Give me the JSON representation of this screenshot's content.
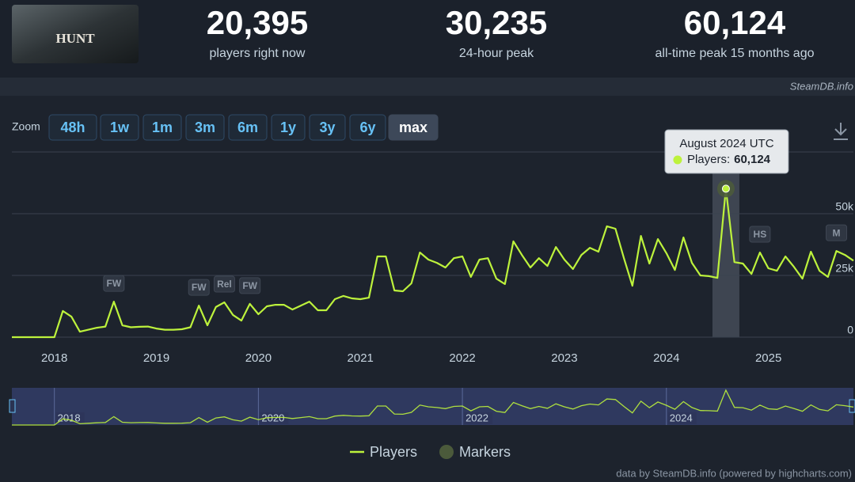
{
  "header": {
    "game_logo": "HUNT",
    "stats": [
      {
        "value": "20,395",
        "label": "players right now"
      },
      {
        "value": "30,235",
        "label": "24-hour peak"
      },
      {
        "value": "60,124",
        "label": "all-time peak 15 months ago"
      }
    ],
    "source": "SteamDB.info"
  },
  "zoom": {
    "label": "Zoom",
    "buttons": [
      "48h",
      "1w",
      "1m",
      "3m",
      "6m",
      "1y",
      "3y",
      "6y",
      "max"
    ]
  },
  "chart_data": {
    "type": "line",
    "x": [
      "2017-08",
      "2017-09",
      "2017-10",
      "2017-11",
      "2017-12",
      "2018-01",
      "2018-02",
      "2018-03",
      "2018-04",
      "2018-05",
      "2018-06",
      "2018-07",
      "2018-08",
      "2018-09",
      "2018-10",
      "2018-11",
      "2018-12",
      "2019-01",
      "2019-02",
      "2019-03",
      "2019-04",
      "2019-05",
      "2019-06",
      "2019-07",
      "2019-08",
      "2019-09",
      "2019-10",
      "2019-11",
      "2019-12",
      "2020-01",
      "2020-02",
      "2020-03",
      "2020-04",
      "2020-05",
      "2020-06",
      "2020-07",
      "2020-08",
      "2020-09",
      "2020-10",
      "2020-11",
      "2020-12",
      "2021-01",
      "2021-02",
      "2021-03",
      "2021-04",
      "2021-05",
      "2021-06",
      "2021-07",
      "2021-08",
      "2021-09",
      "2021-10",
      "2021-11",
      "2021-12",
      "2022-01",
      "2022-02",
      "2022-03",
      "2022-04",
      "2022-05",
      "2022-06",
      "2022-07",
      "2022-08",
      "2022-09",
      "2022-10",
      "2022-11",
      "2022-12",
      "2023-01",
      "2023-02",
      "2023-03",
      "2023-04",
      "2023-05",
      "2023-06",
      "2023-07",
      "2023-08",
      "2023-09",
      "2023-10",
      "2023-11",
      "2023-12",
      "2024-01",
      "2024-02",
      "2024-03",
      "2024-04",
      "2024-05",
      "2024-06",
      "2024-07",
      "2024-08",
      "2024-09",
      "2024-10",
      "2024-11",
      "2024-12",
      "2025-01",
      "2025-02",
      "2025-03",
      "2025-04",
      "2025-05",
      "2025-06",
      "2025-07",
      "2025-08",
      "2025-09",
      "2025-10",
      "2025-11"
    ],
    "series": [
      {
        "name": "Players",
        "color": "#bdf23c",
        "values": [
          0,
          0,
          0,
          0,
          0,
          0,
          10600,
          8300,
          2200,
          3000,
          3800,
          4300,
          14400,
          4800,
          4000,
          4200,
          4300,
          3500,
          3000,
          3000,
          3200,
          4000,
          12800,
          4800,
          12200,
          14100,
          9000,
          6700,
          13500,
          9300,
          12500,
          13100,
          13100,
          11200,
          12800,
          14400,
          10900,
          10900,
          15400,
          16700,
          15700,
          15400,
          16000,
          32700,
          32700,
          18900,
          18600,
          21800,
          34300,
          31400,
          30100,
          28200,
          32000,
          32700,
          24400,
          31400,
          32000,
          23700,
          21500,
          38800,
          33300,
          28200,
          32000,
          28800,
          36500,
          31400,
          27600,
          33300,
          36200,
          34600,
          44900,
          43900,
          32000,
          20800,
          41000,
          29800,
          39700,
          34000,
          27200,
          40400,
          30100,
          25000,
          24700,
          24000,
          60124,
          30400,
          29800,
          25600,
          34300,
          27900,
          26900,
          32700,
          28500,
          23700,
          34600,
          26900,
          24400,
          34900,
          33300,
          31000
        ]
      }
    ],
    "markers_name": "Markers",
    "markers_color": "#4b5a3b",
    "markers": [
      {
        "x": "2018-08",
        "label": "FW"
      },
      {
        "x": "2019-06",
        "label": "FW"
      },
      {
        "x": "2019-09",
        "label": "Rel"
      },
      {
        "x": "2019-12",
        "label": "FW"
      },
      {
        "x": "2024-12",
        "label": "HS"
      },
      {
        "x": "2025-09",
        "label": "M"
      }
    ],
    "xlim": [
      "2017-08",
      "2025-11"
    ],
    "xticks": [
      "2018",
      "2019",
      "2020",
      "2021",
      "2022",
      "2023",
      "2024",
      "2025"
    ],
    "ylim": [
      0,
      75000
    ],
    "yticks": [
      0,
      {
        "value": 25000,
        "label": "25k"
      },
      {
        "value": 50000,
        "label": "50k"
      }
    ],
    "grid": true,
    "tooltip": {
      "title": "August 2024 UTC",
      "label": "Players:",
      "value": "60,124"
    },
    "navigator_ticks": [
      "2018",
      "2020",
      "2022",
      "2024"
    ],
    "credits": "data by SteamDB.info (powered by highcharts.com)"
  }
}
